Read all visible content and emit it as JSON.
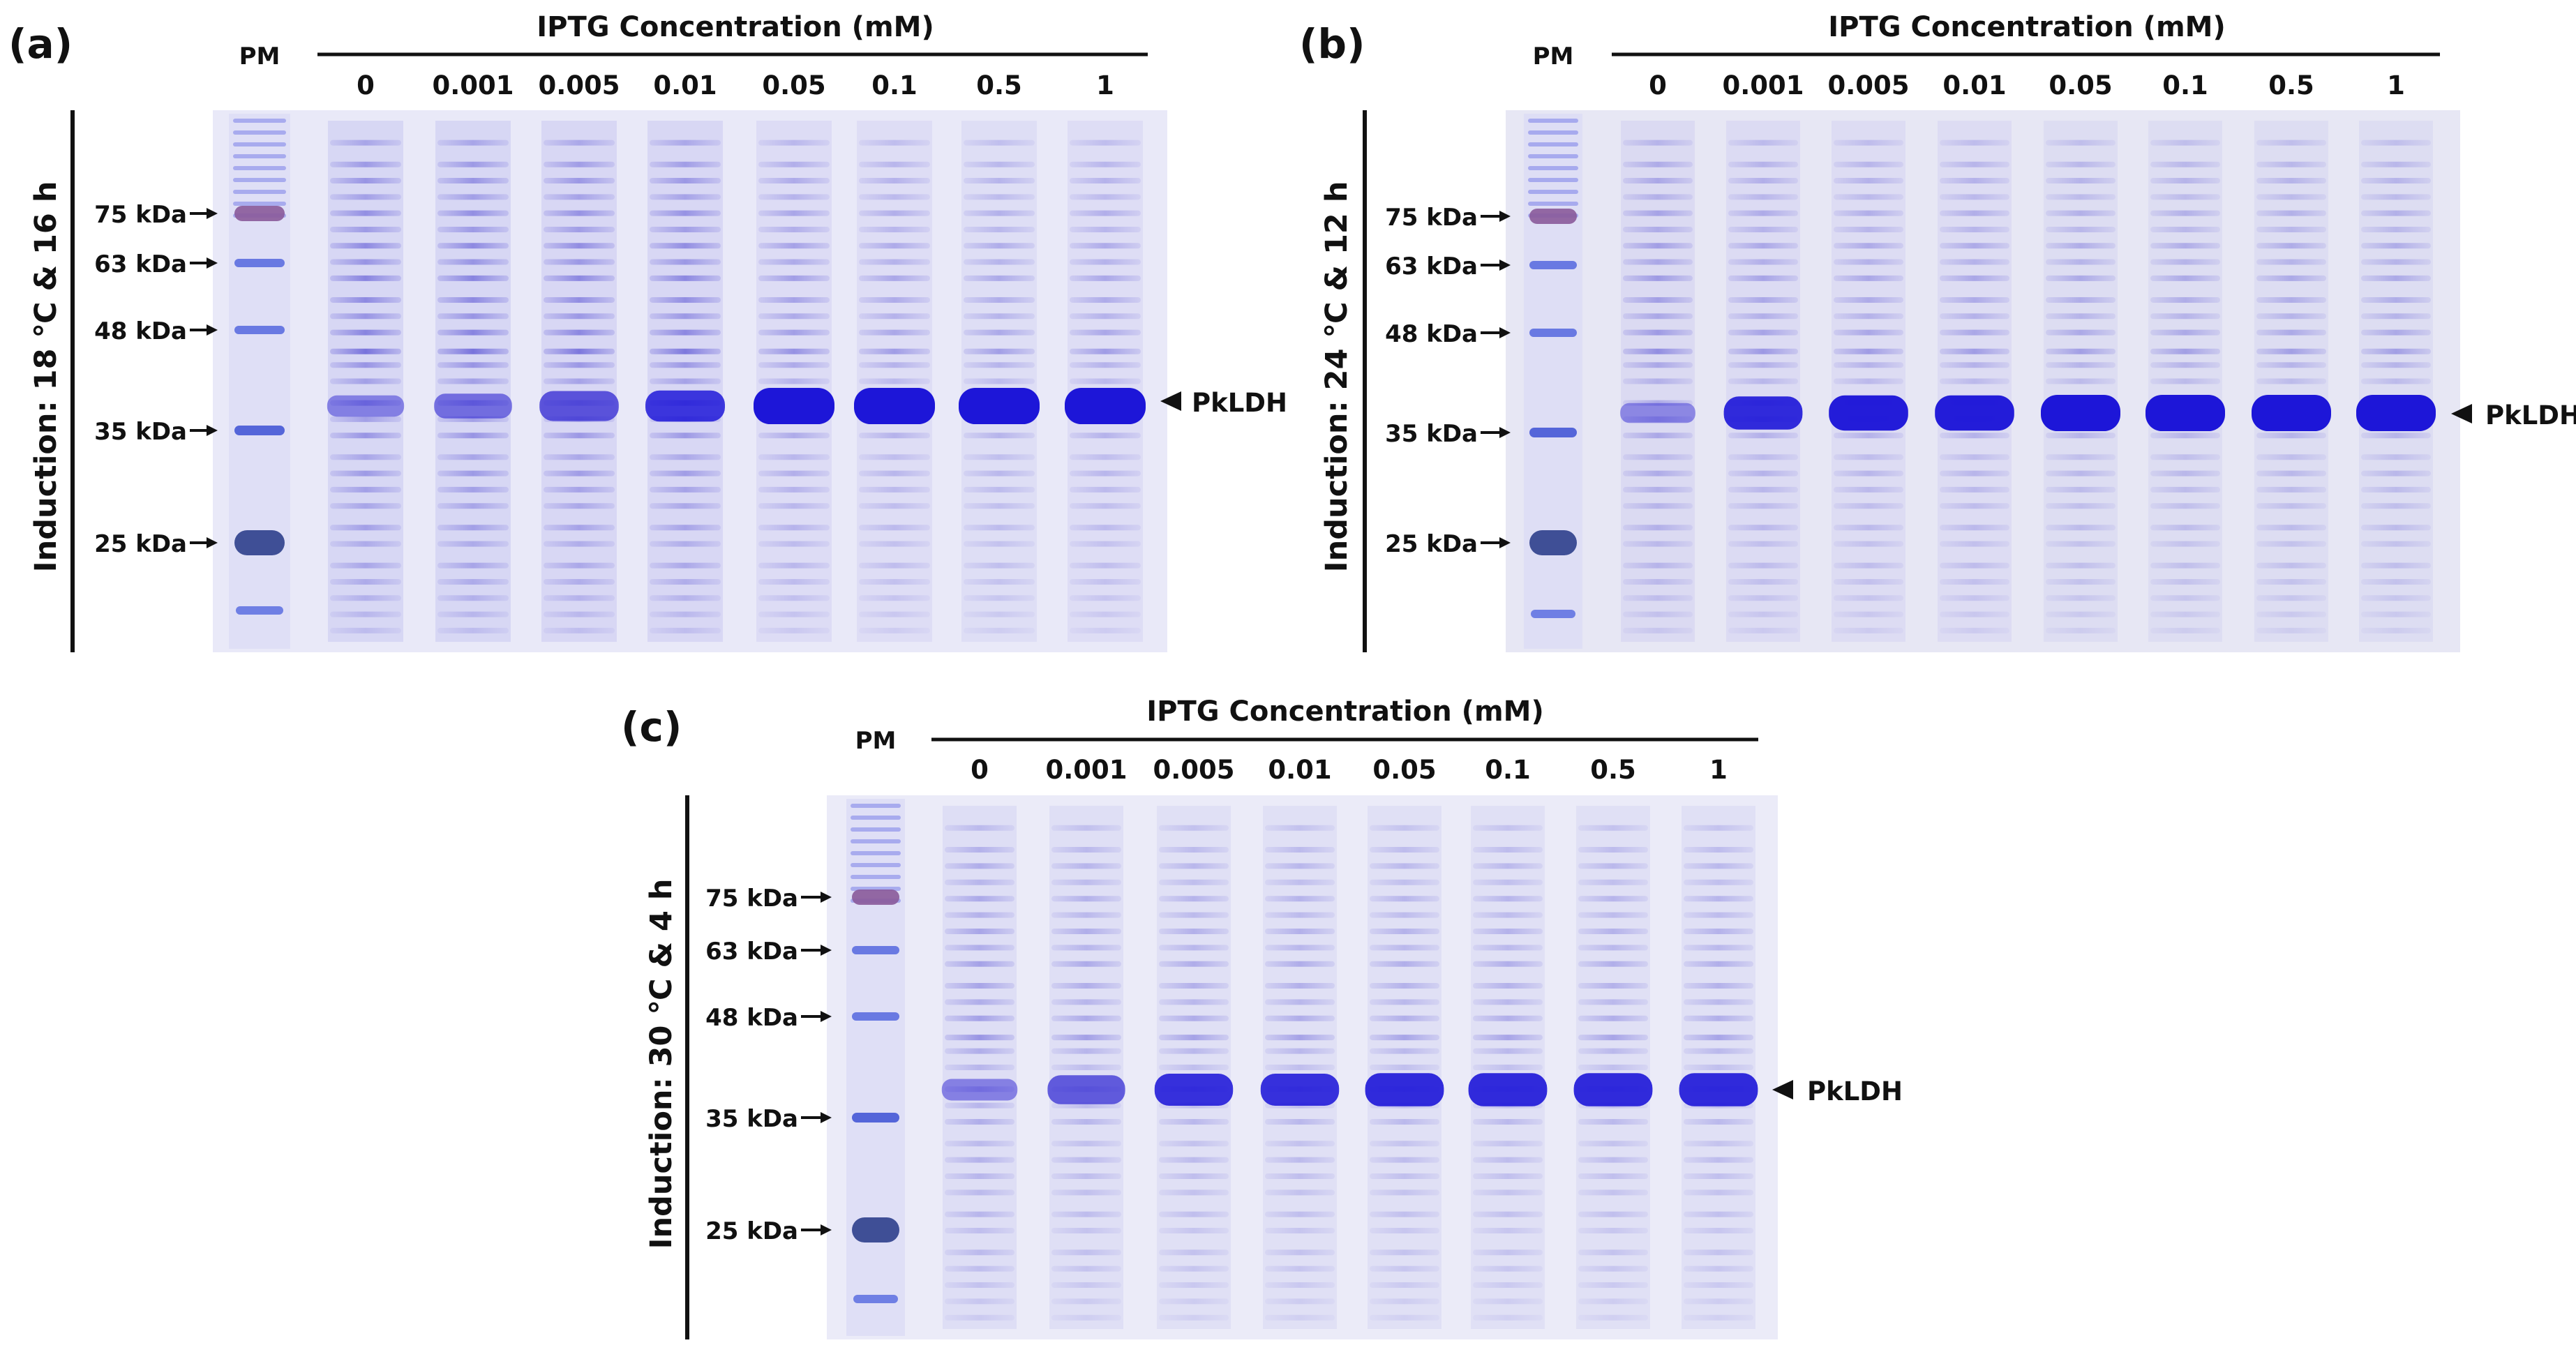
{
  "figure": {
    "panels": [
      {
        "letter": "(a)",
        "ladder_label": "PM",
        "axis_title": "IPTG Concentration (mM)",
        "lanes": [
          "0",
          "0.001",
          "0.005",
          "0.01",
          "0.05",
          "0.1",
          "0.5",
          "1"
        ],
        "condition": "Induction: 18 ℃ & 16 h",
        "markers": [
          "75 kDa",
          "63 kDa",
          "48 kDa",
          "35 kDa",
          "25 kDa"
        ],
        "band_label": "PkLDH",
        "target_intensity": [
          0.28,
          0.45,
          0.7,
          0.75,
          1.0,
          1.0,
          1.0,
          1.0
        ],
        "background_intensity": [
          1.0,
          1.0,
          0.95,
          0.95,
          0.72,
          0.62,
          0.6,
          0.62
        ]
      },
      {
        "letter": "(b)",
        "ladder_label": "PM",
        "axis_title": "IPTG Concentration (mM)",
        "lanes": [
          "0",
          "0.001",
          "0.005",
          "0.01",
          "0.05",
          "0.1",
          "0.5",
          "1"
        ],
        "condition": "Induction: 24 ℃ & 12 h",
        "markers": [
          "75 kDa",
          "63 kDa",
          "48 kDa",
          "35 kDa",
          "25 kDa"
        ],
        "band_label": "PkLDH",
        "target_intensity": [
          0.22,
          0.85,
          0.95,
          0.95,
          1.0,
          1.0,
          1.0,
          1.0
        ],
        "background_intensity": [
          0.75,
          0.65,
          0.62,
          0.62,
          0.6,
          0.6,
          0.6,
          0.6
        ]
      },
      {
        "letter": "(c)",
        "ladder_label": "PM",
        "axis_title": "IPTG Concentration (mM)",
        "lanes": [
          "0",
          "0.001",
          "0.005",
          "0.01",
          "0.05",
          "0.1",
          "0.5",
          "1"
        ],
        "condition": "Induction: 30 ℃ & 4 h",
        "markers": [
          "75 kDa",
          "63 kDa",
          "48 kDa",
          "35 kDa",
          "25 kDa"
        ],
        "band_label": "PkLDH",
        "target_intensity": [
          0.3,
          0.65,
          0.8,
          0.8,
          0.85,
          0.85,
          0.85,
          0.85
        ],
        "background_intensity": [
          0.7,
          0.6,
          0.58,
          0.58,
          0.56,
          0.56,
          0.56,
          0.56
        ]
      }
    ]
  }
}
